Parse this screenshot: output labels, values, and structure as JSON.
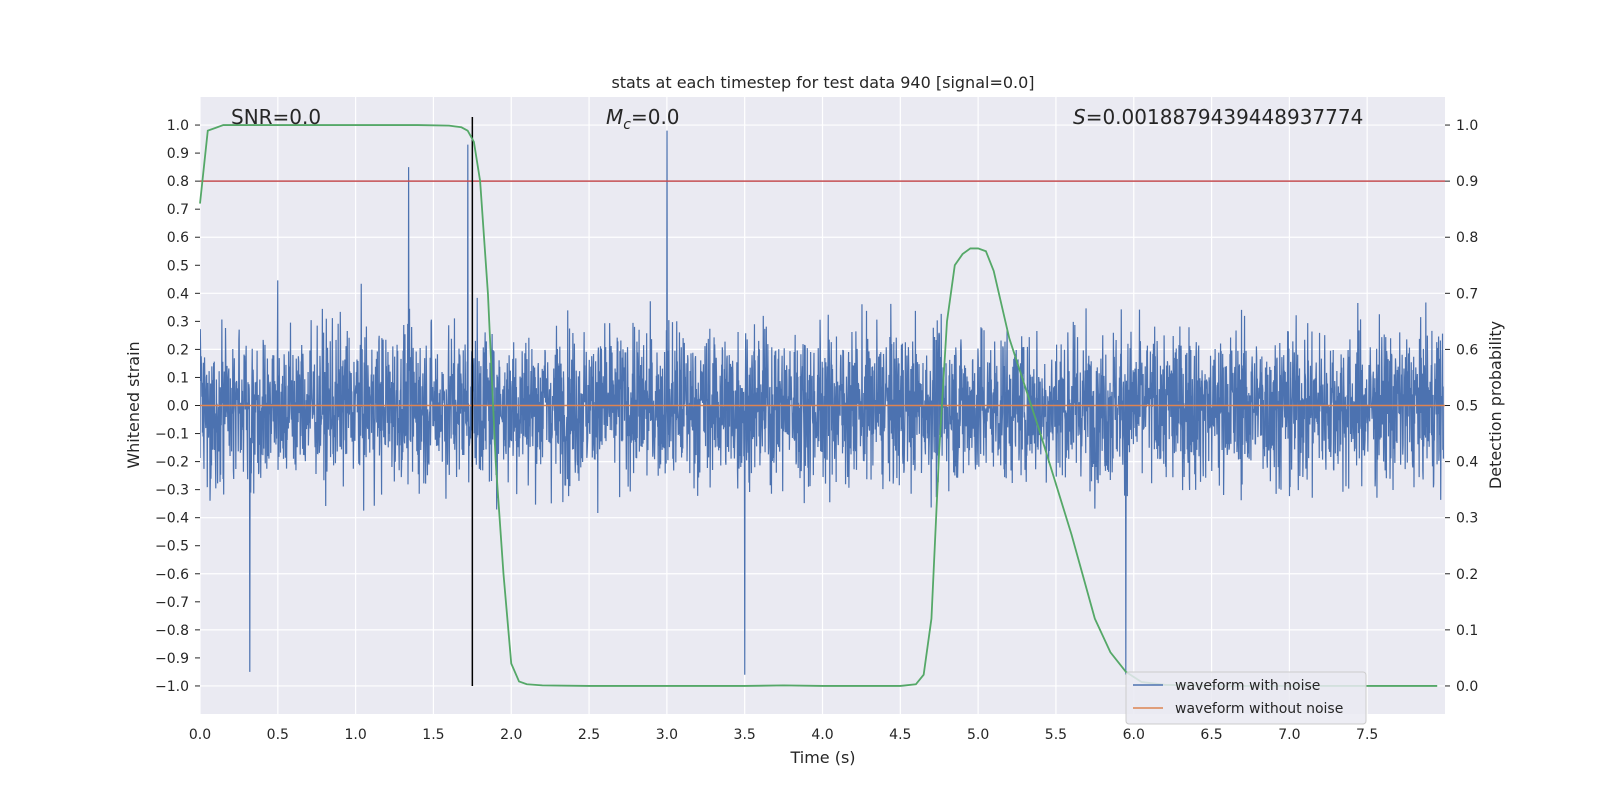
{
  "chart_data": {
    "type": "line",
    "title": "stats at each timestep for test data 940 [signal=0.0]",
    "xlabel": "Time (s)",
    "ylabel": "Whitened strain",
    "y2label": "Detection probability",
    "xlim": [
      0.0,
      8.0
    ],
    "ylim": [
      -1.1,
      1.1
    ],
    "y2lim": [
      -0.05,
      1.05
    ],
    "xticks": [
      "0.0",
      "0.5",
      "1.0",
      "1.5",
      "2.0",
      "2.5",
      "3.0",
      "3.5",
      "4.0",
      "4.5",
      "5.0",
      "5.5",
      "6.0",
      "6.5",
      "7.0",
      "7.5"
    ],
    "xtick_values": [
      0.0,
      0.5,
      1.0,
      1.5,
      2.0,
      2.5,
      3.0,
      3.5,
      4.0,
      4.5,
      5.0,
      5.5,
      6.0,
      6.5,
      7.0,
      7.5
    ],
    "yticks": [
      "1.0",
      "0.9",
      "0.8",
      "0.7",
      "0.6",
      "0.5",
      "0.4",
      "0.3",
      "0.2",
      "0.1",
      "0.0",
      "−0.1",
      "−0.2",
      "−0.3",
      "−0.4",
      "−0.5",
      "−0.6",
      "−0.7",
      "−0.8",
      "−0.9",
      "−1.0"
    ],
    "ytick_values": [
      1.0,
      0.9,
      0.8,
      0.7,
      0.6,
      0.5,
      0.4,
      0.3,
      0.2,
      0.1,
      0.0,
      -0.1,
      -0.2,
      -0.3,
      -0.4,
      -0.5,
      -0.6,
      -0.7,
      -0.8,
      -0.9,
      -1.0
    ],
    "y2ticks": [
      "1.0",
      "0.9",
      "0.8",
      "0.7",
      "0.6",
      "0.5",
      "0.4",
      "0.3",
      "0.2",
      "0.1",
      "0.0"
    ],
    "y2tick_values": [
      1.0,
      0.9,
      0.8,
      0.7,
      0.6,
      0.5,
      0.4,
      0.3,
      0.2,
      0.1,
      0.0
    ],
    "annotations": {
      "snr": "SNR=0.0",
      "mc_symbol": "M",
      "mc_sub": "c",
      "mc_value": "=0.0",
      "s_symbol": "S",
      "s_value": "=0.0018879439448937774"
    },
    "legend": {
      "placement": "lower-right",
      "entries": [
        "waveform with noise",
        "waveform without noise"
      ]
    },
    "series": [
      {
        "name": "waveform with noise",
        "color": "#4c72b0",
        "axis": "left",
        "description_fs": 512,
        "noise_amplitude": 0.2,
        "notable_peaks": [
          {
            "x": 3.0,
            "y": 0.98
          },
          {
            "x": 1.72,
            "y": 0.93
          },
          {
            "x": 1.34,
            "y": 0.85
          },
          {
            "x": 0.32,
            "y": -0.95
          },
          {
            "x": 5.95,
            "y": -0.96
          },
          {
            "x": 3.5,
            "y": -0.96
          }
        ]
      },
      {
        "name": "waveform without noise",
        "color": "#dd8452",
        "axis": "left",
        "x": [
          0.0,
          8.0
        ],
        "y": [
          0.0,
          0.0
        ]
      },
      {
        "name": "detection probability",
        "color": "#55a868",
        "axis": "right",
        "x": [
          0.0,
          0.05,
          0.1,
          0.15,
          0.3,
          0.6,
          1.0,
          1.4,
          1.6,
          1.68,
          1.72,
          1.76,
          1.8,
          1.85,
          1.9,
          1.95,
          2.0,
          2.05,
          2.1,
          2.2,
          2.5,
          3.0,
          3.5,
          3.75,
          4.0,
          4.25,
          4.5,
          4.6,
          4.65,
          4.7,
          4.75,
          4.8,
          4.85,
          4.9,
          4.95,
          5.0,
          5.05,
          5.1,
          5.2,
          5.4,
          5.6,
          5.75,
          5.85,
          5.95,
          6.05,
          6.2,
          6.5,
          7.0,
          7.5,
          7.95
        ],
        "y": [
          0.86,
          0.99,
          0.995,
          1.0,
          1.0,
          1.0,
          1.0,
          1.0,
          0.999,
          0.996,
          0.99,
          0.97,
          0.9,
          0.7,
          0.4,
          0.2,
          0.04,
          0.008,
          0.003,
          0.001,
          0.0,
          0.0,
          0.0,
          0.001,
          0.0,
          0.0,
          0.0,
          0.003,
          0.02,
          0.12,
          0.42,
          0.65,
          0.75,
          0.77,
          0.78,
          0.78,
          0.775,
          0.74,
          0.62,
          0.45,
          0.27,
          0.12,
          0.06,
          0.025,
          0.007,
          0.002,
          0.0,
          0.0,
          0.0,
          0.0
        ]
      }
    ],
    "reference_lines": [
      {
        "name": "threshold",
        "axis": "right",
        "value": 0.9,
        "color": "#c44e52"
      },
      {
        "name": "marker",
        "axis": "x",
        "value": 1.75,
        "from": -1.0,
        "to": 1.0,
        "color": "#000000"
      }
    ]
  },
  "colors": {
    "plot_bg": "#eaeaf2",
    "grid": "#ffffff",
    "text": "#262626"
  }
}
